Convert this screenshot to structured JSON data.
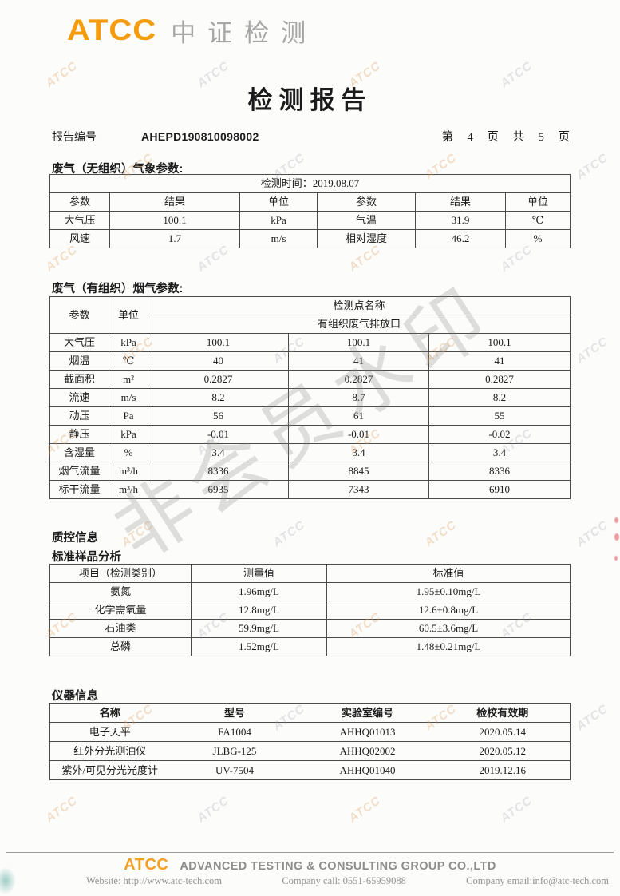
{
  "header": {
    "logo": "ATCC",
    "brand": "中证检测"
  },
  "title": "检测报告",
  "meta": {
    "report_label": "报告编号",
    "report_number": "AHEPD190810098002",
    "page_info": "第 4 页 共 5 页"
  },
  "weather_section": {
    "title": "废气（无组织）气象参数:",
    "time_row": "检测时间：2019.08.07",
    "headers": [
      "参数",
      "结果",
      "单位",
      "参数",
      "结果",
      "单位"
    ],
    "rows": [
      [
        "大气压",
        "100.1",
        "kPa",
        "气温",
        "31.9",
        "℃"
      ],
      [
        "风速",
        "1.7",
        "m/s",
        "相对湿度",
        "46.2",
        "%"
      ]
    ]
  },
  "flue_section": {
    "title": "废气（有组织）烟气参数:",
    "param_header": "参数",
    "unit_header": "单位",
    "point_header": "检测点名称",
    "point_name": "有组织废气排放口",
    "rows": [
      [
        "大气压",
        "kPa",
        "100.1",
        "100.1",
        "100.1"
      ],
      [
        "烟温",
        "℃",
        "40",
        "41",
        "41"
      ],
      [
        "截面积",
        "m²",
        "0.2827",
        "0.2827",
        "0.2827"
      ],
      [
        "流速",
        "m/s",
        "8.2",
        "8.7",
        "8.2"
      ],
      [
        "动压",
        "Pa",
        "56",
        "61",
        "55"
      ],
      [
        "静压",
        "kPa",
        "-0.01",
        "-0.01",
        "-0.02"
      ],
      [
        "含湿量",
        "%",
        "3.4",
        "3.4",
        "3.4"
      ],
      [
        "烟气流量",
        "m³/h",
        "8336",
        "8845",
        "8336"
      ],
      [
        "标干流量",
        "m³/h",
        "6935",
        "7343",
        "6910"
      ]
    ]
  },
  "qc_section": {
    "title": "质控信息",
    "subtitle": "标准样品分析",
    "headers": [
      "项目（检测类别）",
      "测量值",
      "标准值"
    ],
    "rows": [
      [
        "氨氮",
        "1.96mg/L",
        "1.95±0.10mg/L"
      ],
      [
        "化学需氧量",
        "12.8mg/L",
        "12.6±0.8mg/L"
      ],
      [
        "石油类",
        "59.9mg/L",
        "60.5±3.6mg/L"
      ],
      [
        "总磷",
        "1.52mg/L",
        "1.48±0.21mg/L"
      ]
    ]
  },
  "instrument_section": {
    "title": "仪器信息",
    "headers": [
      "名称",
      "型号",
      "实验室编号",
      "检校有效期"
    ],
    "rows": [
      [
        "电子天平",
        "FA1004",
        "AHHQ01013",
        "2020.05.14"
      ],
      [
        "红外分光测油仪",
        "JLBG-125",
        "AHHQ02002",
        "2020.05.12"
      ],
      [
        "紫外/可见分光光度计",
        "UV-7504",
        "AHHQ01040",
        "2019.12.16"
      ]
    ]
  },
  "footer": {
    "logo": "ATCC",
    "company": "ADVANCED TESTING & CONSULTING GROUP CO.,LTD",
    "website": "Website: http://www.atc-tech.com",
    "phone": "Company call: 0551-65959088",
    "email": "Company email:info@atc-tech.com"
  },
  "watermarks": {
    "main": "非会员水印",
    "tile": "ATCC"
  },
  "colors": {
    "accent_orange": "#F49C0D",
    "brand_gray": "#A6A6A6",
    "footer_gray": "#8D8D8B",
    "stamp_red": "#E04850"
  }
}
